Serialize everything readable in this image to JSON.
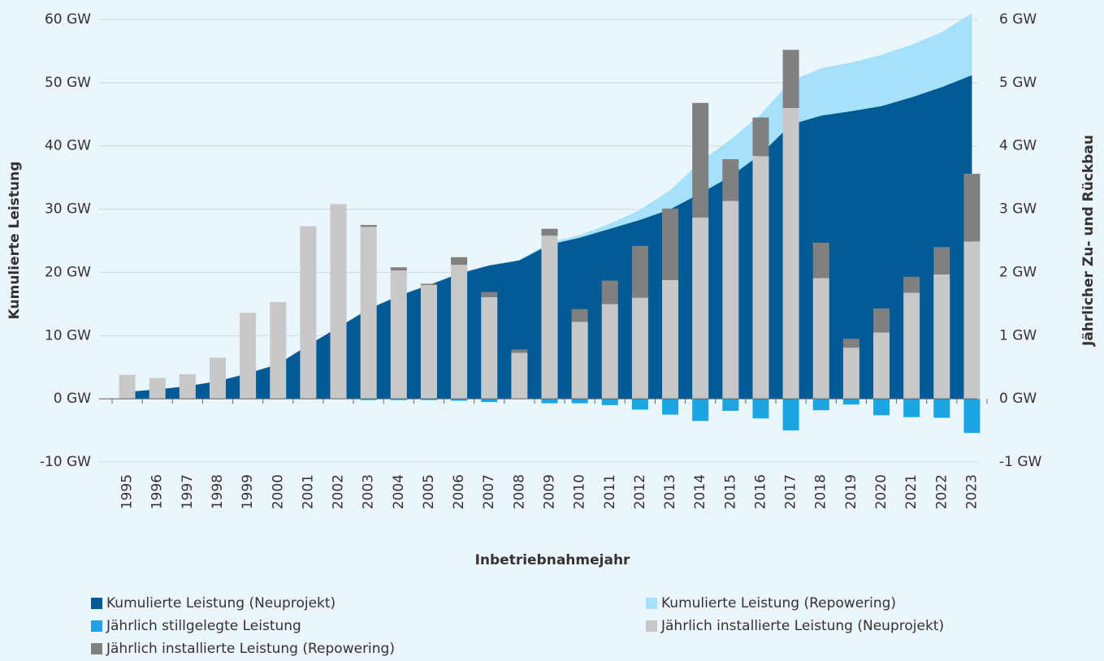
{
  "chart_data": {
    "type": "combo",
    "xlabel": "Inbetriebnahmejahr",
    "ylabel": "Kumulierte Leistung",
    "y2label": "Jährlicher Zu- und Rückbau",
    "categories": [
      "1995",
      "1996",
      "1997",
      "1998",
      "1999",
      "2000",
      "2001",
      "2002",
      "2003",
      "2004",
      "2005",
      "2006",
      "2007",
      "2008",
      "2009",
      "2010",
      "2011",
      "2012",
      "2013",
      "2014",
      "2015",
      "2016",
      "2017",
      "2018",
      "2019",
      "2020",
      "2021",
      "2022",
      "2023"
    ],
    "series": [
      {
        "name": "Kumulierte Leistung (Neuprojekt)",
        "type": "area",
        "color": "#005a96",
        "values": [
          1.1,
          1.5,
          2.0,
          2.8,
          4.0,
          5.5,
          8.5,
          11.3,
          14.2,
          16.3,
          18.0,
          19.8,
          21.1,
          21.9,
          24.4,
          25.5,
          26.9,
          28.3,
          30.0,
          32.5,
          35.2,
          38.7,
          43.4,
          44.8,
          45.5,
          46.3,
          47.7,
          49.3,
          51.2
        ]
      },
      {
        "name": "Kumulierte Leistung (Repowering)",
        "type": "area",
        "color": "#a6e1fa",
        "values": [
          0,
          0,
          0,
          0,
          0,
          0,
          0,
          0,
          0,
          0,
          0,
          0,
          0,
          0.1,
          0.3,
          0.4,
          0.8,
          1.6,
          3.0,
          5.0,
          5.8,
          6.3,
          6.9,
          7.5,
          7.7,
          8.1,
          8.3,
          8.7,
          9.8
        ]
      },
      {
        "name": "Jährlich stillgelegte Leistung",
        "type": "bar",
        "axis": "y2",
        "color": "#1aa6e4",
        "values": [
          0,
          0,
          0,
          0,
          0,
          0,
          0,
          0,
          -0.02,
          -0.02,
          -0.02,
          -0.03,
          -0.05,
          0,
          -0.07,
          -0.07,
          -0.1,
          -0.17,
          -0.25,
          -0.35,
          -0.19,
          -0.31,
          -0.5,
          -0.18,
          -0.09,
          -0.26,
          -0.29,
          -0.3,
          -0.54
        ]
      },
      {
        "name": "Jährlich installierte Leistung (Neuprojekt)",
        "type": "bar",
        "axis": "y2",
        "color": "#c8c8c8",
        "values": [
          0.38,
          0.33,
          0.39,
          0.65,
          1.36,
          1.53,
          2.73,
          3.08,
          2.72,
          2.03,
          1.8,
          2.12,
          1.61,
          0.73,
          2.58,
          1.22,
          1.5,
          1.6,
          1.88,
          2.87,
          3.13,
          3.84,
          4.6,
          1.91,
          0.81,
          1.05,
          1.68,
          1.97,
          2.49
        ]
      },
      {
        "name": "Jährlich installierte Leistung (Repowering)",
        "type": "bar",
        "axis": "y2",
        "color": "#808080",
        "values": [
          0,
          0,
          0,
          0,
          0,
          0,
          0,
          0,
          0.03,
          0.05,
          0.02,
          0.12,
          0.08,
          0.05,
          0.11,
          0.2,
          0.37,
          0.82,
          1.13,
          1.81,
          0.66,
          0.61,
          0.92,
          0.56,
          0.14,
          0.38,
          0.25,
          0.43,
          1.07
        ]
      }
    ],
    "ylim": [
      -10,
      60
    ],
    "yticks": [
      {
        "value": -10,
        "label": "-10 GW"
      },
      {
        "value": 0,
        "label": "0 GW"
      },
      {
        "value": 10,
        "label": "10 GW"
      },
      {
        "value": 20,
        "label": "20 GW"
      },
      {
        "value": 30,
        "label": "30 GW"
      },
      {
        "value": 40,
        "label": "40 GW"
      },
      {
        "value": 50,
        "label": "50 GW"
      },
      {
        "value": 60,
        "label": "60 GW"
      }
    ],
    "y2lim": [
      -1,
      6
    ],
    "y2ticks": [
      {
        "value": -1,
        "label": "-1 GW"
      },
      {
        "value": 0,
        "label": "0 GW"
      },
      {
        "value": 1,
        "label": "1 GW"
      },
      {
        "value": 2,
        "label": "2 GW"
      },
      {
        "value": 3,
        "label": "3 GW"
      },
      {
        "value": 4,
        "label": "4 GW"
      },
      {
        "value": 5,
        "label": "5 GW"
      },
      {
        "value": 6,
        "label": "6 GW"
      }
    ],
    "grid": true
  }
}
